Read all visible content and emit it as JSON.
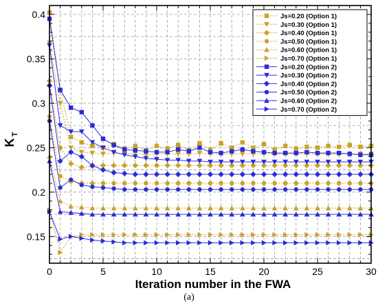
{
  "chart_data": {
    "type": "line",
    "xlabel": "Iteration number in the FWA",
    "ylabel_main": "K",
    "ylabel_sub": "T",
    "xlim": [
      0,
      30
    ],
    "ylim": [
      0.12,
      0.41
    ],
    "xticks": [
      0,
      5,
      10,
      15,
      20,
      25,
      30
    ],
    "yticks": [
      0.15,
      0.2,
      0.25,
      0.3,
      0.35,
      0.4
    ],
    "ytick_labels": [
      "0.15",
      "0.2",
      "0.25",
      "0.3",
      "0.35",
      "0.4"
    ],
    "grid": true,
    "legend_position": "top-right",
    "x": [
      0,
      1,
      2,
      3,
      4,
      5,
      6,
      7,
      8,
      9,
      10,
      11,
      12,
      13,
      14,
      15,
      16,
      17,
      18,
      19,
      20,
      21,
      22,
      23,
      24,
      25,
      26,
      27,
      28,
      29,
      30
    ],
    "series": [
      {
        "name": "Js=0.20 (Option 1)",
        "group": 1,
        "marker": "square",
        "values": [
          0.402,
          0.315,
          0.262,
          0.256,
          0.252,
          0.25,
          0.254,
          0.249,
          0.252,
          0.247,
          0.252,
          0.249,
          0.253,
          0.247,
          0.255,
          0.248,
          0.255,
          0.25,
          0.256,
          0.25,
          0.254,
          0.248,
          0.252,
          0.249,
          0.251,
          0.25,
          0.252,
          0.251,
          0.253,
          0.251,
          0.252
        ]
      },
      {
        "name": "Js=0.30 (Option 1)",
        "group": 1,
        "marker": "triangle-down",
        "values": [
          0.368,
          0.3,
          0.25,
          0.245,
          0.244,
          0.243,
          0.244,
          0.243,
          0.244,
          0.242,
          0.243,
          0.243,
          0.243,
          0.243,
          0.244,
          0.243,
          0.243,
          0.243,
          0.243,
          0.243,
          0.243,
          0.243,
          0.243,
          0.243,
          0.243,
          0.243,
          0.243,
          0.243,
          0.243,
          0.243,
          0.243
        ]
      },
      {
        "name": "Js=0.40 (Option 1)",
        "group": 1,
        "marker": "diamond",
        "values": [
          0.325,
          0.25,
          0.232,
          0.228,
          0.229,
          0.23,
          0.23,
          0.23,
          0.23,
          0.23,
          0.23,
          0.23,
          0.23,
          0.23,
          0.23,
          0.23,
          0.23,
          0.23,
          0.23,
          0.23,
          0.23,
          0.23,
          0.23,
          0.23,
          0.23,
          0.23,
          0.23,
          0.23,
          0.23,
          0.23,
          0.23
        ]
      },
      {
        "name": "Js=0.50 (Option 1)",
        "group": 1,
        "marker": "circle",
        "values": [
          0.285,
          0.218,
          0.212,
          0.21,
          0.21,
          0.21,
          0.21,
          0.21,
          0.21,
          0.21,
          0.21,
          0.21,
          0.21,
          0.21,
          0.21,
          0.21,
          0.21,
          0.21,
          0.21,
          0.21,
          0.21,
          0.21,
          0.21,
          0.21,
          0.21,
          0.21,
          0.21,
          0.21,
          0.21,
          0.21,
          0.21
        ]
      },
      {
        "name": "Js=0.60 (Option 1)",
        "group": 1,
        "marker": "triangle-up",
        "values": [
          0.24,
          0.19,
          0.184,
          0.183,
          0.182,
          0.182,
          0.182,
          0.182,
          0.182,
          0.182,
          0.182,
          0.182,
          0.182,
          0.182,
          0.182,
          0.182,
          0.182,
          0.182,
          0.182,
          0.182,
          0.182,
          0.182,
          0.182,
          0.182,
          0.182,
          0.182,
          0.182,
          0.182,
          0.182,
          0.182,
          0.182
        ]
      },
      {
        "name": "Js=0.70 (Option 1)",
        "group": 1,
        "marker": "triangle-right",
        "values": [
          0.18,
          0.132,
          0.15,
          0.152,
          0.152,
          0.152,
          0.152,
          0.152,
          0.152,
          0.152,
          0.152,
          0.152,
          0.152,
          0.152,
          0.152,
          0.152,
          0.152,
          0.152,
          0.152,
          0.152,
          0.152,
          0.152,
          0.152,
          0.152,
          0.152,
          0.152,
          0.152,
          0.152,
          0.152,
          0.152,
          0.152
        ]
      },
      {
        "name": "Js=0.20 (Option 2)",
        "group": 2,
        "marker": "square",
        "values": [
          0.395,
          0.315,
          0.295,
          0.29,
          0.275,
          0.26,
          0.253,
          0.248,
          0.247,
          0.246,
          0.245,
          0.245,
          0.248,
          0.246,
          0.25,
          0.245,
          0.244,
          0.246,
          0.248,
          0.246,
          0.245,
          0.244,
          0.244,
          0.244,
          0.245,
          0.244,
          0.244,
          0.244,
          0.243,
          0.242,
          0.242
        ]
      },
      {
        "name": "Js=0.30 (Option 2)",
        "group": 2,
        "marker": "triangle-down",
        "values": [
          0.365,
          0.275,
          0.268,
          0.268,
          0.256,
          0.25,
          0.245,
          0.242,
          0.24,
          0.238,
          0.237,
          0.236,
          0.236,
          0.235,
          0.235,
          0.234,
          0.234,
          0.234,
          0.234,
          0.234,
          0.234,
          0.234,
          0.234,
          0.234,
          0.234,
          0.234,
          0.234,
          0.234,
          0.234,
          0.234,
          0.234
        ]
      },
      {
        "name": "Js=0.40 (Option 2)",
        "group": 2,
        "marker": "diamond",
        "values": [
          0.32,
          0.235,
          0.245,
          0.24,
          0.23,
          0.225,
          0.222,
          0.221,
          0.22,
          0.22,
          0.22,
          0.22,
          0.22,
          0.22,
          0.22,
          0.22,
          0.22,
          0.22,
          0.22,
          0.22,
          0.22,
          0.22,
          0.22,
          0.22,
          0.22,
          0.22,
          0.22,
          0.22,
          0.22,
          0.22,
          0.22
        ]
      },
      {
        "name": "Js=0.50 (Option 2)",
        "group": 2,
        "marker": "circle",
        "values": [
          0.28,
          0.205,
          0.214,
          0.208,
          0.206,
          0.205,
          0.204,
          0.203,
          0.203,
          0.203,
          0.203,
          0.203,
          0.203,
          0.203,
          0.203,
          0.203,
          0.203,
          0.203,
          0.203,
          0.203,
          0.203,
          0.203,
          0.203,
          0.203,
          0.203,
          0.203,
          0.203,
          0.203,
          0.203,
          0.203,
          0.203
        ]
      },
      {
        "name": "Js=0.60 (Option 2)",
        "group": 2,
        "marker": "triangle-up",
        "values": [
          0.235,
          0.178,
          0.177,
          0.176,
          0.175,
          0.175,
          0.175,
          0.175,
          0.175,
          0.175,
          0.175,
          0.175,
          0.175,
          0.175,
          0.175,
          0.175,
          0.175,
          0.175,
          0.175,
          0.175,
          0.175,
          0.175,
          0.175,
          0.175,
          0.175,
          0.175,
          0.175,
          0.175,
          0.175,
          0.175,
          0.175
        ]
      },
      {
        "name": "Js=0.70 (Option 2)",
        "group": 2,
        "marker": "triangle-right",
        "values": [
          0.178,
          0.147,
          0.15,
          0.148,
          0.146,
          0.145,
          0.144,
          0.143,
          0.143,
          0.143,
          0.143,
          0.143,
          0.143,
          0.143,
          0.143,
          0.143,
          0.143,
          0.143,
          0.143,
          0.143,
          0.143,
          0.143,
          0.143,
          0.143,
          0.143,
          0.143,
          0.143,
          0.143,
          0.143,
          0.143,
          0.143
        ]
      }
    ],
    "colors": {
      "option1": "#c9a227",
      "option2": "#2b2bdb",
      "grid": "#9a9a9a",
      "axis": "#000000"
    }
  },
  "caption": "(a)"
}
